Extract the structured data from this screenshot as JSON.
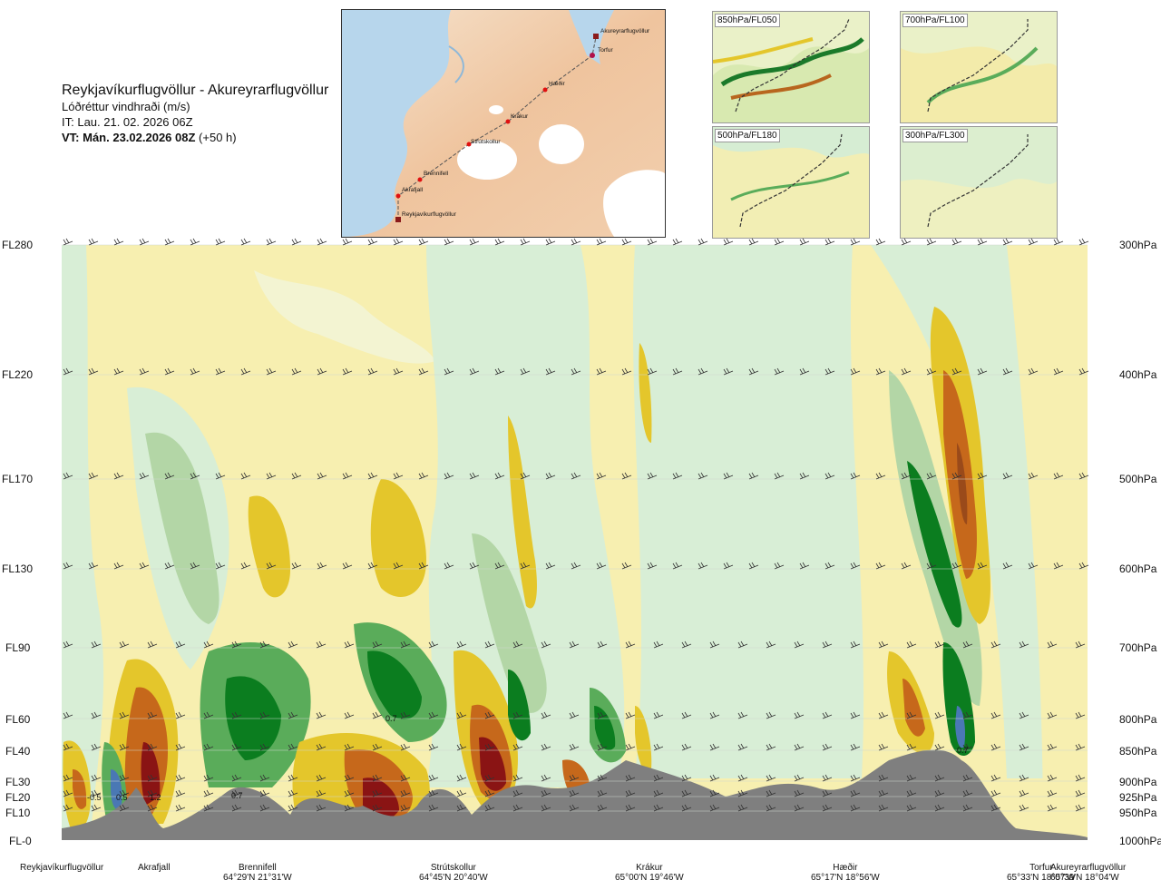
{
  "header": {
    "title": "Reykjavíkurflugvöllur - Akureyrarflugvöllur",
    "parameter": "Lóðréttur vindhraði (m/s)",
    "issue_time": "IT: Lau. 21. 02. 2026 06Z",
    "valid_time": "VT: Mán. 23.02.2026 08Z",
    "lead": "(+50 h)"
  },
  "route_map": {
    "waypoints": [
      "Akureyrarflugvöllur",
      "Torfur",
      "Hæðir",
      "Krákur",
      "Strútskollur",
      "Brennifell",
      "Akrafjall",
      "Reykjavíkurflugvöllur"
    ]
  },
  "level_maps": [
    {
      "label": "850hPa/FL050"
    },
    {
      "label": "700hPa/FL100"
    },
    {
      "label": "500hPa/FL180"
    },
    {
      "label": "300hPa/FL300"
    }
  ],
  "flight_levels": [
    "FL280",
    "FL220",
    "FL170",
    "FL130",
    "FL90",
    "FL60",
    "FL40",
    "FL30",
    "FL20",
    "FL10",
    "FL-0"
  ],
  "pressure_levels": [
    "300hPa",
    "400hPa",
    "500hPa",
    "600hPa",
    "700hPa",
    "800hPa",
    "850hPa",
    "900hPa",
    "925hPa",
    "950hPa",
    "1000hPa"
  ],
  "sites": [
    {
      "name": "Reykjavíkurflugvöllur",
      "coord": ""
    },
    {
      "name": "Akrafjall",
      "coord": ""
    },
    {
      "name": "Brennifell",
      "coord": "64°29'N 21°31'W"
    },
    {
      "name": "Strútskollur",
      "coord": "64°45'N 20°40'W"
    },
    {
      "name": "Krákur",
      "coord": "65°00'N 19°46'W"
    },
    {
      "name": "Hæðir",
      "coord": "65°17'N 18°56'W"
    },
    {
      "name": "Torfur",
      "coord": "65°33'N 18°07'W"
    },
    {
      "name": "Akureyrarflugvöllur",
      "coord": "65°39'N 18°04'W"
    }
  ],
  "contour_labels": [
    "-0.5",
    "0.5",
    "1.2",
    "0.7",
    "0.7",
    "0.7"
  ],
  "colors": {
    "strong_up": "#0b7d1f",
    "up": "#5aac5a",
    "weak_up": "#d6edd3",
    "weak_down": "#f6eca8",
    "down": "#e4c62b",
    "strong_down": "#c6681b",
    "very_strong_down": "#8a1414",
    "extreme_up": "#4a78b4",
    "terrain": "#7f7f7f"
  }
}
